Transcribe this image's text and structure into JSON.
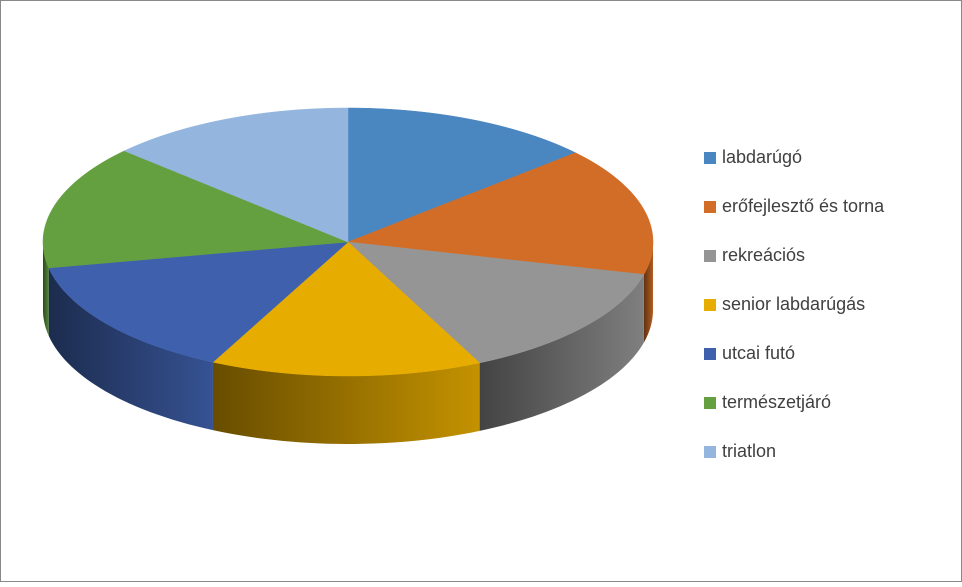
{
  "chart_data": {
    "type": "pie3d",
    "categories": [
      "labdarúgó",
      "erőfejlesztő és torna",
      "rekreációs",
      "senior labdarúgás",
      "utcai futó",
      "természetjáró",
      "triatlon"
    ],
    "values": [
      13.4,
      15.5,
      14,
      14.4,
      14.6,
      15,
      13.1
    ],
    "colors": [
      "#4a86c0",
      "#d26d27",
      "#959595",
      "#e6ac00",
      "#3f61ad",
      "#64a03f",
      "#94b6de"
    ],
    "legend": "right"
  }
}
